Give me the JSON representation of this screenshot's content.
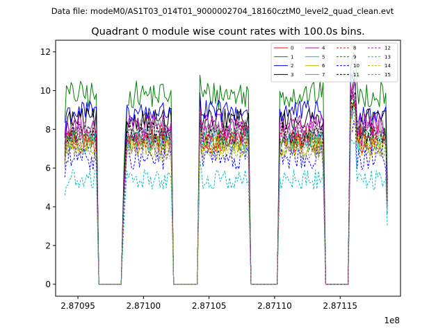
{
  "suptitle": "Data file: modeM0/AS1T03_014T01_9000002704_18160cztM0_level2_quad_clean.evt",
  "chart_data": {
    "type": "line",
    "title": "Quadrant 0 module wise count rates with 100.0s bins.",
    "xlabel": "",
    "ylabel": "",
    "x_offset_label": "1e8",
    "xlim": [
      2.870933,
      2.871196
    ],
    "ylim": [
      -0.62,
      12.6
    ],
    "x_ticks": [
      2.87095,
      2.871,
      2.87105,
      2.8711,
      2.87115
    ],
    "x_tick_labels": [
      "2.87095",
      "2.87100",
      "2.87105",
      "2.87110",
      "2.87115"
    ],
    "y_ticks": [
      0,
      2,
      4,
      6,
      8,
      10,
      12
    ],
    "y_tick_labels": [
      "0",
      "2",
      "4",
      "6",
      "8",
      "10",
      "12"
    ],
    "legend_position": "top-right",
    "segments": [
      {
        "start": 2.87094,
        "end": 2.870964
      },
      {
        "start": 2.870985,
        "end": 2.871021
      },
      {
        "start": 2.871043,
        "end": 2.87108
      },
      {
        "start": 2.871104,
        "end": 2.871137
      },
      {
        "start": 2.871158,
        "end": 2.871186
      }
    ],
    "gaps": [
      [
        2.870966,
        2.870983
      ],
      [
        2.871023,
        2.871041
      ],
      [
        2.871082,
        2.871102
      ],
      [
        2.871139,
        2.871156
      ]
    ],
    "series": [
      {
        "name": "0",
        "color": "#ff0000",
        "dash": "solid",
        "mean": 7.6
      },
      {
        "name": "1",
        "color": "#008000",
        "dash": "solid",
        "mean": 9.8
      },
      {
        "name": "2",
        "color": "#0000ff",
        "dash": "solid",
        "mean": 8.9
      },
      {
        "name": "3",
        "color": "#000000",
        "dash": "solid",
        "mean": 8.5
      },
      {
        "name": "4",
        "color": "#bf00bf",
        "dash": "solid",
        "mean": 8.2
      },
      {
        "name": "5",
        "color": "#00bfbf",
        "dash": "solid",
        "mean": 7.4
      },
      {
        "name": "6",
        "color": "#bfbf00",
        "dash": "solid",
        "mean": 7.2
      },
      {
        "name": "7",
        "color": "#808080",
        "dash": "solid",
        "mean": 7.9
      },
      {
        "name": "8",
        "color": "#ff0000",
        "dash": "dashed",
        "mean": 7.3
      },
      {
        "name": "9",
        "color": "#008000",
        "dash": "dashed",
        "mean": 7.5
      },
      {
        "name": "10",
        "color": "#0000ff",
        "dash": "dashed",
        "mean": 6.5
      },
      {
        "name": "11",
        "color": "#000000",
        "dash": "dashed",
        "mean": 7.8
      },
      {
        "name": "12",
        "color": "#bf00bf",
        "dash": "dashed",
        "mean": 7.8
      },
      {
        "name": "13",
        "color": "#00bfbf",
        "dash": "dashed",
        "mean": 5.4
      },
      {
        "name": "14",
        "color": "#bfbf00",
        "dash": "dashed",
        "mean": 7.0
      },
      {
        "name": "15",
        "color": "#808080",
        "dash": "dashed",
        "mean": 7.1
      }
    ]
  }
}
